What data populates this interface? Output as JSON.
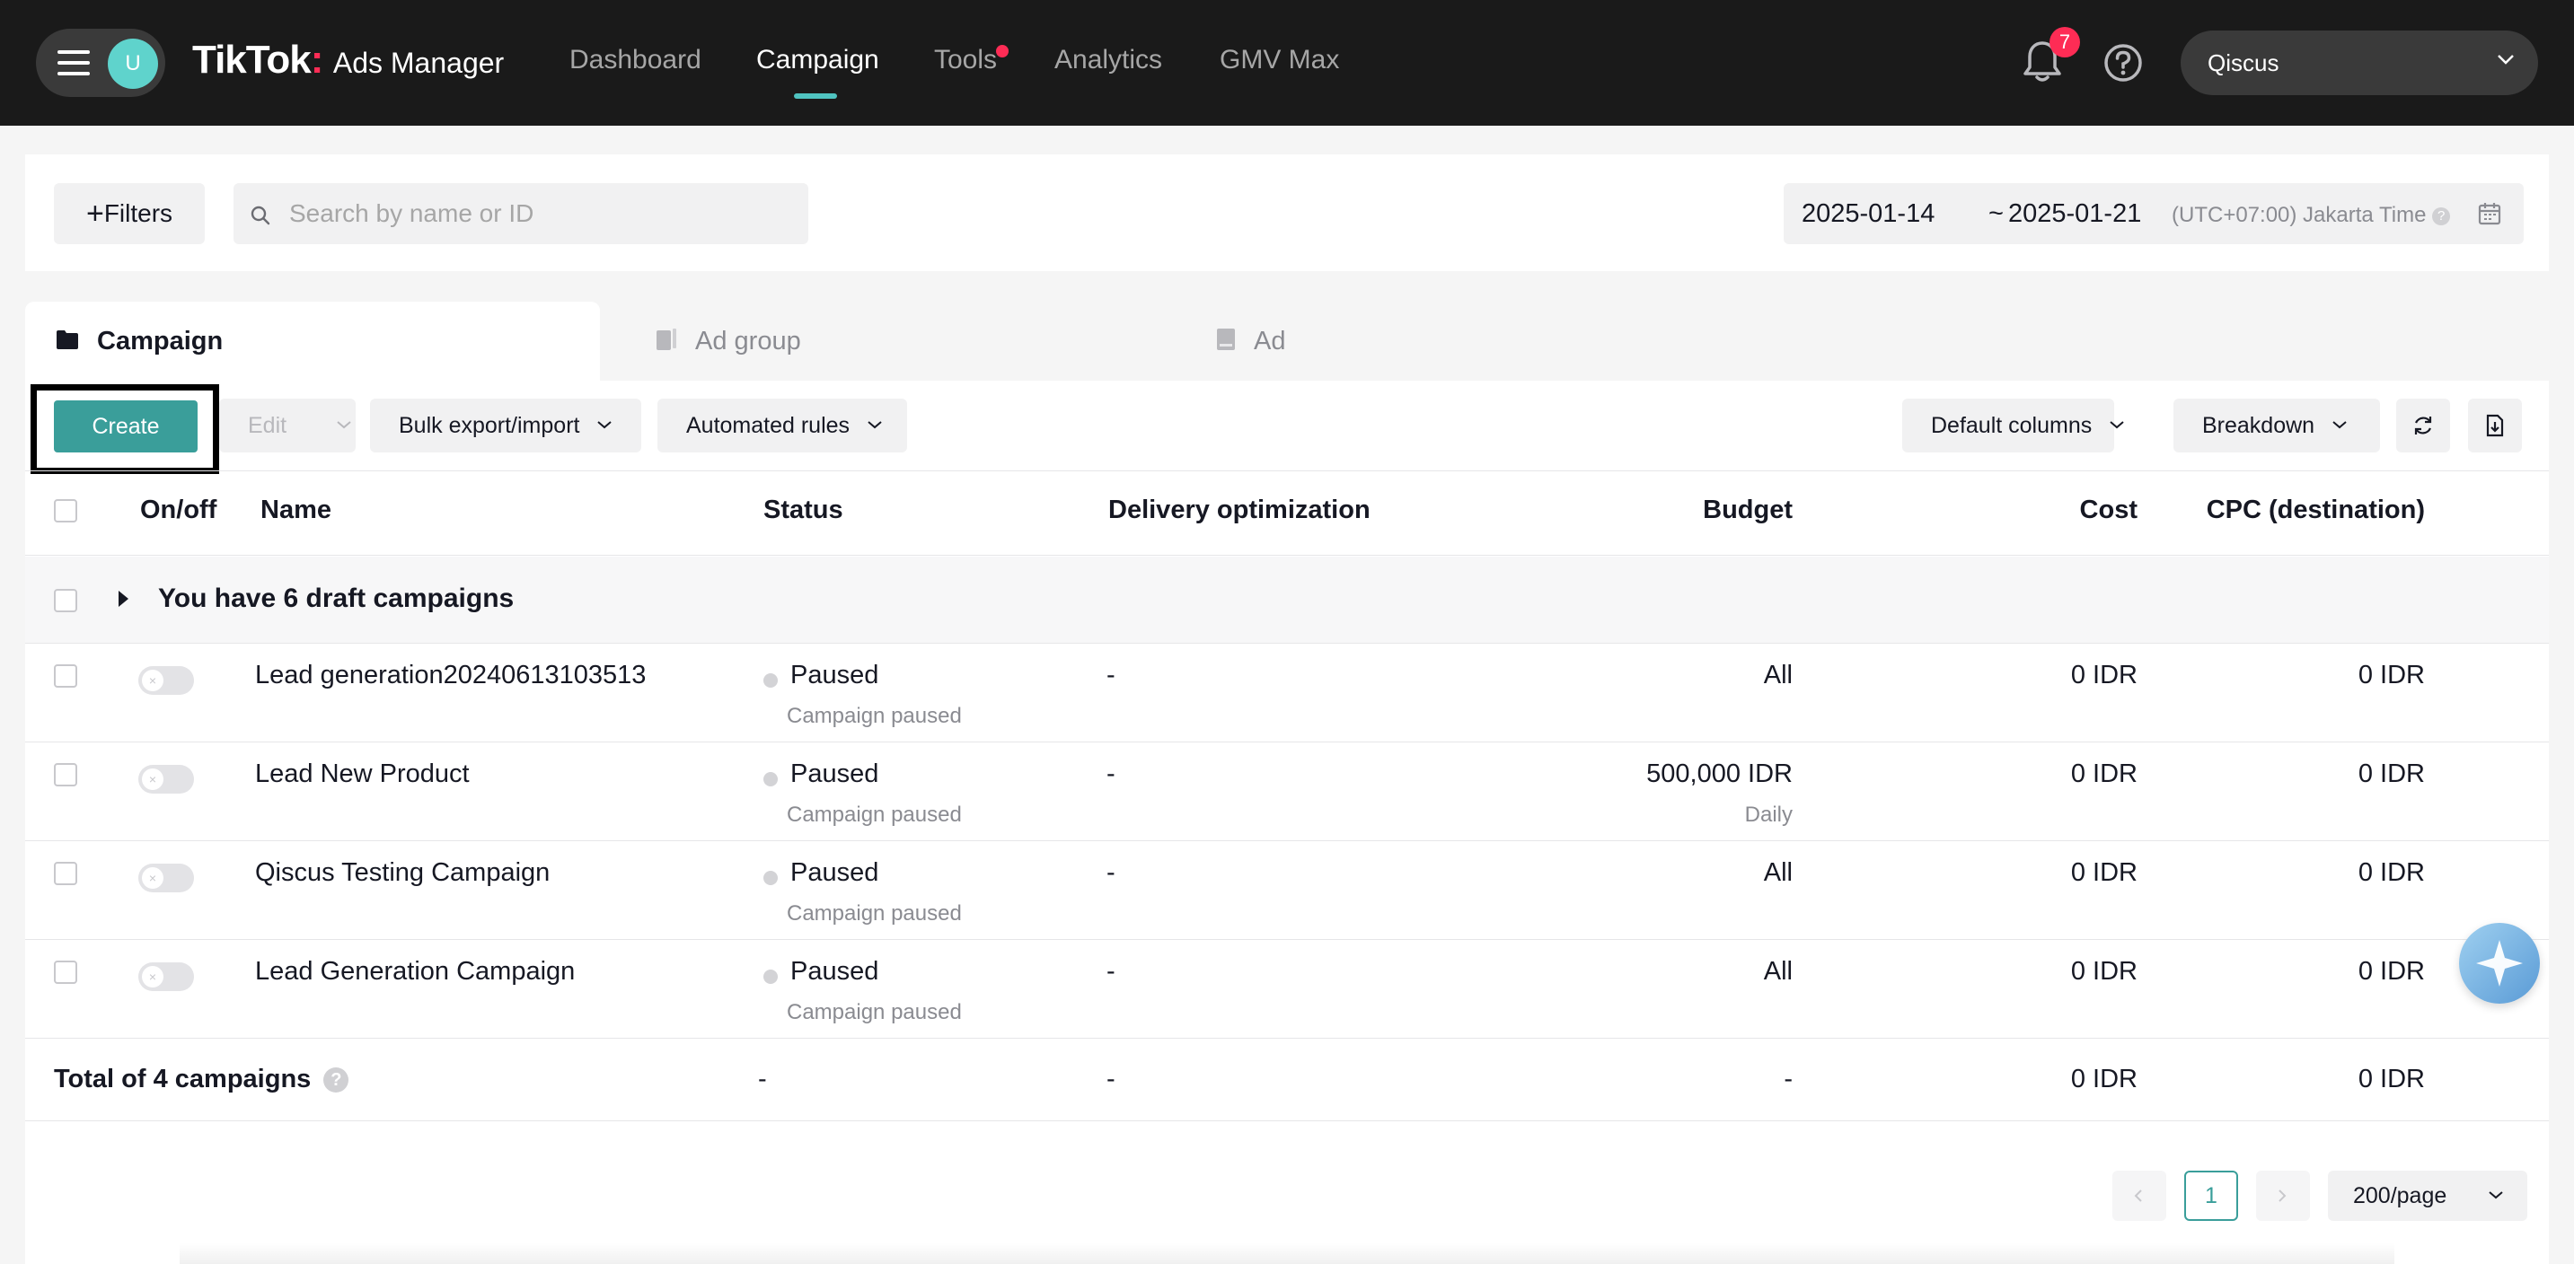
{
  "nav": {
    "avatar_letter": "U",
    "logo_main": "TikTok",
    "logo_dot": ":",
    "logo_sub": "Ads Manager",
    "items": [
      {
        "label": "Dashboard",
        "active": false
      },
      {
        "label": "Campaign",
        "active": true
      },
      {
        "label": "Tools",
        "active": false,
        "has_dot": true
      },
      {
        "label": "Analytics",
        "active": false
      },
      {
        "label": "GMV Max",
        "active": false
      }
    ],
    "notification_count": "7",
    "account_name": "Qiscus",
    "icons": [
      "menu-icon",
      "bell-icon",
      "help-icon",
      "chevron-down-icon"
    ]
  },
  "filterbar": {
    "filters_label": "Filters",
    "search_placeholder": "Search by name or ID",
    "search_value": "",
    "date_start": "2025-01-14",
    "date_sep": "~",
    "date_end": "2025-01-21",
    "timezone": "(UTC+07:00) Jakarta Time"
  },
  "levels": [
    {
      "label": "Campaign",
      "active": true,
      "icon": "folder-icon"
    },
    {
      "label": "Ad group",
      "active": false,
      "icon": "ad-group-icon"
    },
    {
      "label": "Ad",
      "active": false,
      "icon": "ad-icon"
    }
  ],
  "toolbar": {
    "create_label": "Create",
    "edit_label": "Edit",
    "bulk_label": "Bulk export/import",
    "rules_label": "Automated rules",
    "columns_label": "Default columns",
    "breakdown_label": "Breakdown",
    "icons": [
      "refresh-icon",
      "export-icon"
    ]
  },
  "table": {
    "headers": {
      "onoff": "On/off",
      "name": "Name",
      "status": "Status",
      "delivery": "Delivery optimization",
      "budget": "Budget",
      "cost": "Cost",
      "cpc": "CPC (destination)"
    },
    "draft_text": "You have 6 draft campaigns",
    "rows": [
      {
        "name": "Lead generation20240613103513",
        "status": "Paused",
        "status_detail": "Campaign paused",
        "delivery": "-",
        "budget": "All",
        "budget_detail": "",
        "cost": "0 IDR",
        "cpc": "0 IDR",
        "enabled": false
      },
      {
        "name": "Lead New Product",
        "status": "Paused",
        "status_detail": "Campaign paused",
        "delivery": "-",
        "budget": "500,000 IDR",
        "budget_detail": "Daily",
        "cost": "0 IDR",
        "cpc": "0 IDR",
        "enabled": false
      },
      {
        "name": "Qiscus Testing Campaign",
        "status": "Paused",
        "status_detail": "Campaign paused",
        "delivery": "-",
        "budget": "All",
        "budget_detail": "",
        "cost": "0 IDR",
        "cpc": "0 IDR",
        "enabled": false
      },
      {
        "name": "Lead Generation Campaign",
        "status": "Paused",
        "status_detail": "Campaign paused",
        "delivery": "-",
        "budget": "All",
        "budget_detail": "",
        "cost": "0 IDR",
        "cpc": "0 IDR",
        "enabled": false
      }
    ],
    "total": {
      "label": "Total of 4 campaigns",
      "status": "-",
      "delivery": "-",
      "budget": "-",
      "cost": "0 IDR",
      "cpc": "0 IDR"
    }
  },
  "pagination": {
    "current_page": "1",
    "page_size": "200/page"
  },
  "colors": {
    "nav_bg": "#1a1a1a",
    "accent": "#3a9e9a",
    "alert": "#fe2c55"
  }
}
